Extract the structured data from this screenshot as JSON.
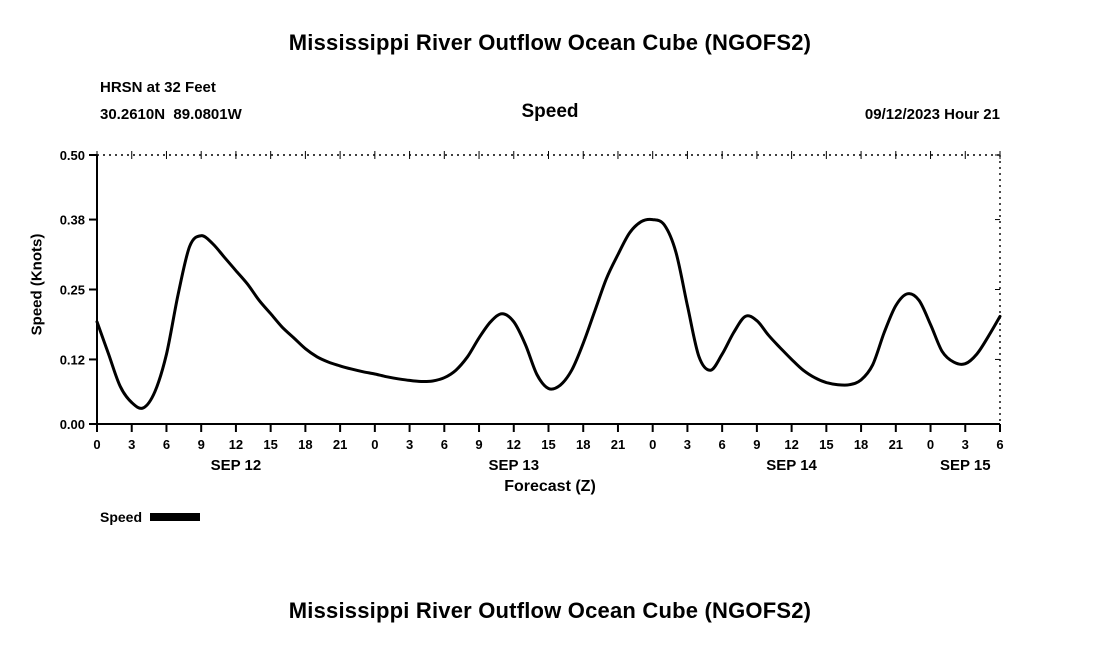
{
  "page": {
    "top_title": "Mississippi River Outflow Ocean Cube (NGOFS2)",
    "bottom_title": "Mississippi River Outflow Ocean Cube (NGOFS2)"
  },
  "header": {
    "station": "HRSN at 32 Feet",
    "coordinates": "30.2610N  89.0801W",
    "panel_title": "Speed",
    "datetime": "09/12/2023 Hour 21"
  },
  "legend": {
    "label": "Speed",
    "swatch_color": "#000000"
  },
  "chart_data": {
    "type": "line",
    "title": "Speed",
    "xlabel": "Forecast (Z)",
    "ylabel": "Speed (Knots)",
    "ylim": [
      0.0,
      0.5
    ],
    "yticks": [
      0.0,
      0.12,
      0.25,
      0.38,
      0.5
    ],
    "ytick_labels": [
      "0.00",
      "0.12",
      "0.25",
      "0.38",
      "0.50"
    ],
    "x_start": 0,
    "x_end": 78,
    "x_step": 1,
    "xtick_interval": 3,
    "xtick_label_mod": 24,
    "grid": "frame-only, top and right edges dotted",
    "legend_position": "below-left",
    "day_labels": [
      {
        "label": "SEP 12",
        "hour": 12
      },
      {
        "label": "SEP 13",
        "hour": 36
      },
      {
        "label": "SEP 14",
        "hour": 60
      },
      {
        "label": "SEP 15",
        "hour": 75
      }
    ],
    "series": [
      {
        "name": "Speed",
        "color": "#000000",
        "values": [
          0.19,
          0.13,
          0.07,
          0.04,
          0.03,
          0.06,
          0.13,
          0.24,
          0.33,
          0.35,
          0.335,
          0.31,
          0.285,
          0.26,
          0.23,
          0.205,
          0.18,
          0.16,
          0.14,
          0.125,
          0.115,
          0.108,
          0.102,
          0.097,
          0.093,
          0.088,
          0.084,
          0.081,
          0.079,
          0.08,
          0.086,
          0.1,
          0.125,
          0.16,
          0.19,
          0.205,
          0.19,
          0.148,
          0.092,
          0.066,
          0.072,
          0.1,
          0.15,
          0.21,
          0.27,
          0.315,
          0.355,
          0.376,
          0.38,
          0.37,
          0.32,
          0.22,
          0.125,
          0.1,
          0.13,
          0.17,
          0.2,
          0.192,
          0.165,
          0.142,
          0.12,
          0.1,
          0.086,
          0.077,
          0.073,
          0.073,
          0.082,
          0.11,
          0.17,
          0.22,
          0.242,
          0.23,
          0.185,
          0.135,
          0.115,
          0.112,
          0.13,
          0.163,
          0.2
        ]
      }
    ]
  }
}
